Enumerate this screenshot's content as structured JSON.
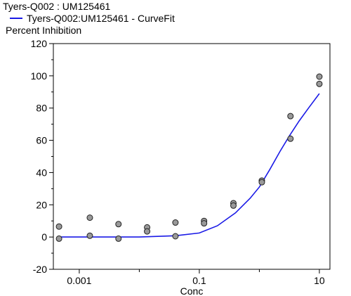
{
  "chart_data": {
    "type": "scatter",
    "title": "Tyers-Q002  :  UM125461",
    "legend": [
      {
        "name": "Tyers-Q002:UM125461 - CurveFit",
        "color": "#1a1ae6",
        "kind": "line"
      }
    ],
    "ylabel": "Percent Inhibition",
    "xlabel": "Conc",
    "x_scale": "log",
    "xlim": [
      0.00037,
      15
    ],
    "ylim": [
      -20,
      120
    ],
    "y_ticks": [
      -20,
      0,
      20,
      40,
      60,
      80,
      100,
      120
    ],
    "x_ticks": [
      {
        "value": 0.001,
        "label": "0.001"
      },
      {
        "value": 0.1,
        "label": "0.1"
      },
      {
        "value": 10,
        "label": "10"
      }
    ],
    "x_minor_ticks": [
      0.01,
      1
    ],
    "series": [
      {
        "kind": "points",
        "marker_color": "#999999",
        "points": [
          {
            "x": 0.00046,
            "y": 6.5
          },
          {
            "x": 0.00046,
            "y": -1
          },
          {
            "x": 0.0015,
            "y": 12
          },
          {
            "x": 0.0015,
            "y": 0.8
          },
          {
            "x": 0.0045,
            "y": 8
          },
          {
            "x": 0.0045,
            "y": -1
          },
          {
            "x": 0.0135,
            "y": 6
          },
          {
            "x": 0.0135,
            "y": 3.5
          },
          {
            "x": 0.04,
            "y": 9
          },
          {
            "x": 0.04,
            "y": 0.5
          },
          {
            "x": 0.12,
            "y": 10
          },
          {
            "x": 0.12,
            "y": 8.5
          },
          {
            "x": 0.37,
            "y": 21
          },
          {
            "x": 0.37,
            "y": 19.5
          },
          {
            "x": 1.1,
            "y": 35
          },
          {
            "x": 1.1,
            "y": 34
          },
          {
            "x": 3.3,
            "y": 75
          },
          {
            "x": 3.3,
            "y": 61
          },
          {
            "x": 10,
            "y": 99.5
          },
          {
            "x": 10,
            "y": 95
          }
        ]
      },
      {
        "name": "Tyers-Q002:UM125461 - CurveFit",
        "kind": "fit",
        "color": "#1a1ae6",
        "points": [
          {
            "x": 0.00046,
            "y": 0
          },
          {
            "x": 0.01,
            "y": 0
          },
          {
            "x": 0.04,
            "y": 0.8
          },
          {
            "x": 0.1,
            "y": 2.5
          },
          {
            "x": 0.2,
            "y": 7
          },
          {
            "x": 0.4,
            "y": 15
          },
          {
            "x": 0.7,
            "y": 24
          },
          {
            "x": 1,
            "y": 31
          },
          {
            "x": 1.5,
            "y": 42
          },
          {
            "x": 2.2,
            "y": 53
          },
          {
            "x": 3.2,
            "y": 63
          },
          {
            "x": 4.6,
            "y": 72
          },
          {
            "x": 6.6,
            "y": 80
          },
          {
            "x": 10,
            "y": 89
          }
        ]
      }
    ]
  }
}
